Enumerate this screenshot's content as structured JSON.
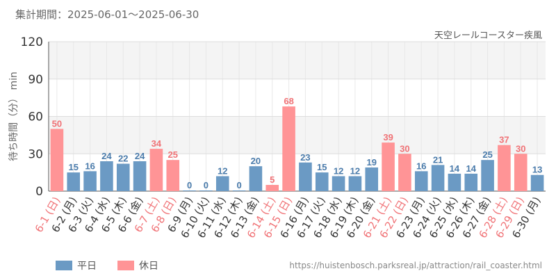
{
  "header": {
    "period_label": "集計期間：2025-06-01～2025-06-30",
    "attraction_name": "天空レールコースター疾風"
  },
  "legend": {
    "weekday_label": "平日",
    "holiday_label": "休日"
  },
  "footer": {
    "source_url": "https://huistenbosch.parksreal.jp/attraction/rail_coaster.html"
  },
  "colors": {
    "weekday": "#6b9ac4",
    "holiday": "#ff9496",
    "weekday_label": "#4a7bab",
    "holiday_label": "#f07276",
    "band": "#f4f4f4"
  },
  "chart_data": {
    "type": "bar",
    "ylabel": "待ち時間（分） min",
    "ylim": [
      0,
      120
    ],
    "yticks": [
      0,
      30,
      60,
      90,
      120
    ],
    "categories": [
      "6-1 (日)",
      "6-2 (月)",
      "6-3 (火)",
      "6-4 (水)",
      "6-5 (木)",
      "6-6 (金)",
      "6-7 (土)",
      "6-8 (日)",
      "6-9 (月)",
      "6-10 (火)",
      "6-11 (水)",
      "6-12 (木)",
      "6-13 (金)",
      "6-14 (土)",
      "6-15 (日)",
      "6-16 (月)",
      "6-17 (火)",
      "6-18 (水)",
      "6-19 (木)",
      "6-20 (金)",
      "6-21 (土)",
      "6-22 (日)",
      "6-23 (月)",
      "6-24 (火)",
      "6-25 (水)",
      "6-26 (木)",
      "6-27 (金)",
      "6-28 (土)",
      "6-29 (日)",
      "6-30 (月)"
    ],
    "values": [
      50,
      15,
      16,
      24,
      22,
      24,
      34,
      25,
      0,
      0,
      12,
      0,
      20,
      5,
      68,
      23,
      15,
      12,
      12,
      19,
      39,
      30,
      16,
      21,
      14,
      14,
      25,
      37,
      30,
      13
    ],
    "day_type": [
      "holiday",
      "weekday",
      "weekday",
      "weekday",
      "weekday",
      "weekday",
      "holiday",
      "holiday",
      "weekday",
      "weekday",
      "weekday",
      "weekday",
      "weekday",
      "holiday",
      "holiday",
      "weekday",
      "weekday",
      "weekday",
      "weekday",
      "weekday",
      "holiday",
      "holiday",
      "weekday",
      "weekday",
      "weekday",
      "weekday",
      "weekday",
      "holiday",
      "holiday",
      "weekday"
    ],
    "series": [
      {
        "name": "平日"
      },
      {
        "name": "休日"
      }
    ],
    "legend_position": "bottom-left",
    "grid": true
  }
}
